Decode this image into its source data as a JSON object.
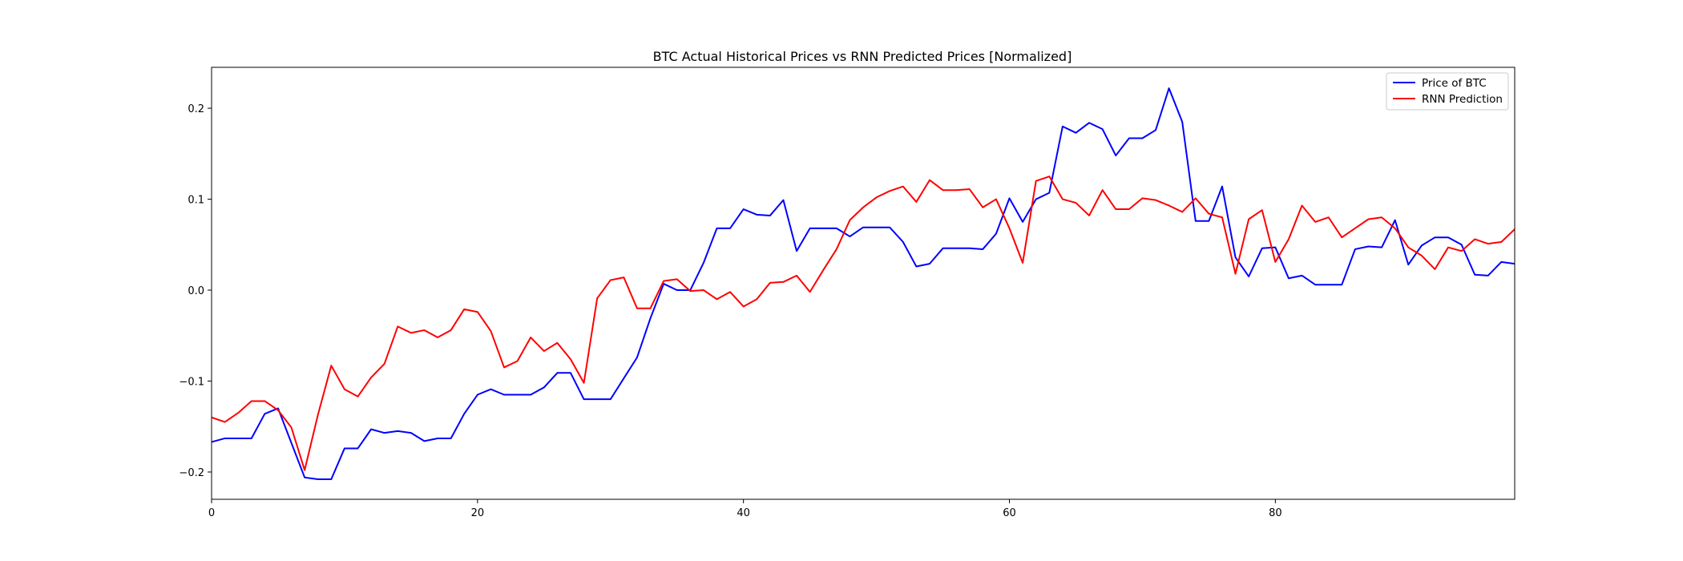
{
  "chart_data": {
    "type": "line",
    "title": "BTC Actual Historical Prices vs RNN Predicted Prices [Normalized]",
    "xlabel": "",
    "ylabel": "",
    "xlim": [
      0,
      98
    ],
    "ylim": [
      -0.23,
      0.245
    ],
    "xticks": [
      0,
      20,
      40,
      60,
      80
    ],
    "xtick_labels": [
      "0",
      "20",
      "40",
      "60",
      "80"
    ],
    "yticks": [
      -0.2,
      -0.1,
      0.0,
      0.1,
      0.2
    ],
    "ytick_labels": [
      "−0.2",
      "−0.1",
      "0.0",
      "0.1",
      "0.2"
    ],
    "grid": false,
    "legend_position": "top-right",
    "series": [
      {
        "name": "Price of BTC",
        "color": "#0000ff",
        "values": [
          -0.167,
          -0.163,
          -0.163,
          -0.163,
          -0.136,
          -0.13,
          -0.168,
          -0.206,
          -0.208,
          -0.208,
          -0.174,
          -0.174,
          -0.153,
          -0.157,
          -0.155,
          -0.157,
          -0.166,
          -0.163,
          -0.163,
          -0.136,
          -0.115,
          -0.109,
          -0.115,
          -0.115,
          -0.115,
          -0.107,
          -0.091,
          -0.091,
          -0.12,
          -0.12,
          -0.12,
          -0.097,
          -0.074,
          -0.031,
          0.007,
          0.0,
          0.0,
          0.03,
          0.068,
          0.068,
          0.089,
          0.083,
          0.082,
          0.099,
          0.043,
          0.068,
          0.068,
          0.068,
          0.059,
          0.069,
          0.069,
          0.069,
          0.053,
          0.026,
          0.029,
          0.046,
          0.046,
          0.046,
          0.045,
          0.062,
          0.101,
          0.075,
          0.1,
          0.107,
          0.18,
          0.173,
          0.184,
          0.177,
          0.148,
          0.167,
          0.167,
          0.176,
          0.222,
          0.185,
          0.076,
          0.076,
          0.114,
          0.036,
          0.015,
          0.046,
          0.047,
          0.013,
          0.016,
          0.006,
          0.006,
          0.006,
          0.045,
          0.048,
          0.047,
          0.077,
          0.028,
          0.049,
          0.058,
          0.058,
          0.05,
          0.017,
          0.016,
          0.031,
          0.029
        ]
      },
      {
        "name": "RNN Prediction",
        "color": "#ff0000",
        "values": [
          -0.14,
          -0.145,
          -0.135,
          -0.122,
          -0.122,
          -0.132,
          -0.151,
          -0.198,
          -0.137,
          -0.083,
          -0.109,
          -0.117,
          -0.096,
          -0.081,
          -0.04,
          -0.047,
          -0.044,
          -0.052,
          -0.044,
          -0.021,
          -0.024,
          -0.045,
          -0.085,
          -0.078,
          -0.052,
          -0.067,
          -0.058,
          -0.076,
          -0.102,
          -0.009,
          0.011,
          0.014,
          -0.02,
          -0.02,
          0.01,
          0.012,
          -0.001,
          0.0,
          -0.01,
          -0.002,
          -0.018,
          -0.01,
          0.008,
          0.009,
          0.016,
          -0.002,
          0.022,
          0.045,
          0.077,
          0.091,
          0.102,
          0.109,
          0.114,
          0.097,
          0.121,
          0.11,
          0.11,
          0.111,
          0.091,
          0.1,
          0.068,
          0.03,
          0.12,
          0.125,
          0.1,
          0.096,
          0.082,
          0.11,
          0.089,
          0.089,
          0.101,
          0.099,
          0.093,
          0.086,
          0.101,
          0.084,
          0.08,
          0.018,
          0.078,
          0.088,
          0.031,
          0.056,
          0.093,
          0.075,
          0.08,
          0.058,
          0.068,
          0.078,
          0.08,
          0.068,
          0.047,
          0.038,
          0.023,
          0.047,
          0.043,
          0.056,
          0.051,
          0.053,
          0.067
        ]
      }
    ]
  }
}
